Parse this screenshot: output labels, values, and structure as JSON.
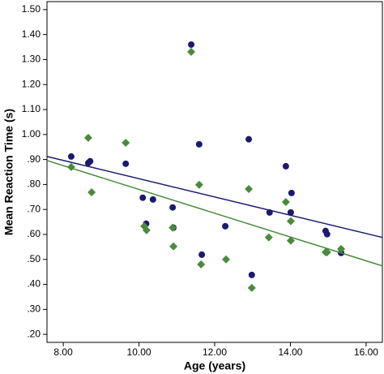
{
  "chart_data": {
    "type": "scatter",
    "x_label": "Age (years)",
    "y_label": "Mean Reaction Time (s)",
    "xlim": [
      7.57,
      16.43
    ],
    "ylim": [
      0.168,
      1.532
    ],
    "xticks": [
      {
        "value": 8,
        "label": "8.00"
      },
      {
        "value": 10,
        "label": "10.00"
      },
      {
        "value": 12,
        "label": "12.00"
      },
      {
        "value": 14,
        "label": "14.00"
      },
      {
        "value": 16,
        "label": "16.00"
      }
    ],
    "yticks": [
      {
        "value": 0.2,
        "label": ".20"
      },
      {
        "value": 0.3,
        "label": ".30"
      },
      {
        "value": 0.4,
        "label": ".40"
      },
      {
        "value": 0.5,
        "label": ".50"
      },
      {
        "value": 0.6,
        "label": ".60"
      },
      {
        "value": 0.7,
        "label": ".70"
      },
      {
        "value": 0.8,
        "label": ".80"
      },
      {
        "value": 0.9,
        "label": ".90"
      },
      {
        "value": 1.0,
        "label": "1.00"
      },
      {
        "value": 1.1,
        "label": "1.10"
      },
      {
        "value": 1.2,
        "label": "1.20"
      },
      {
        "value": 1.3,
        "label": "1.30"
      },
      {
        "value": 1.4,
        "label": "1.40"
      },
      {
        "value": 1.5,
        "label": "1.50"
      }
    ],
    "series": [
      {
        "color": "#1a1a6e",
        "marker": "circle",
        "x": [
          8.21,
          8.71,
          8.66,
          9.65,
          10.1,
          10.19,
          10.37,
          10.89,
          10.91,
          11.38,
          11.59,
          11.66,
          12.28,
          12.9,
          12.98,
          13.45,
          13.88,
          14.03,
          14.01,
          14.93,
          14.97,
          15.34
        ],
        "values": [
          0.912,
          0.893,
          0.886,
          0.883,
          0.747,
          0.643,
          0.74,
          0.708,
          0.627,
          1.36,
          0.961,
          0.519,
          0.633,
          0.981,
          0.438,
          0.688,
          0.873,
          0.766,
          0.688,
          0.614,
          0.601,
          0.526
        ],
        "fit": {
          "x": [
            7.57,
            16.43
          ],
          "values": [
            0.912,
            0.588
          ]
        }
      },
      {
        "color": "#4a8a3c",
        "marker": "diamond",
        "x": [
          8.21,
          8.66,
          8.75,
          9.65,
          10.14,
          10.2,
          10.89,
          10.91,
          11.38,
          11.59,
          11.64,
          12.3,
          12.9,
          12.98,
          13.43,
          13.88,
          14.01,
          14.01,
          14.93,
          14.97,
          15.34
        ],
        "values": [
          0.87,
          0.987,
          0.769,
          0.967,
          0.633,
          0.617,
          0.627,
          0.552,
          1.331,
          0.799,
          0.48,
          0.5,
          0.782,
          0.386,
          0.588,
          0.73,
          0.653,
          0.575,
          0.529,
          0.529,
          0.542
        ],
        "fit": {
          "x": [
            7.57,
            16.43
          ],
          "values": [
            0.896,
            0.474
          ]
        }
      }
    ]
  }
}
